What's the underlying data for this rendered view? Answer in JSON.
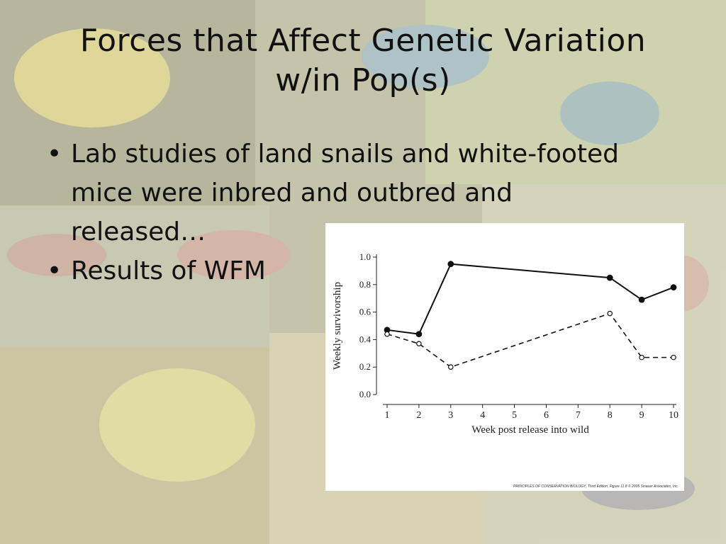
{
  "slide": {
    "title": "Forces that Affect Genetic Variation w/in Pop(s)",
    "bullets": [
      "Lab studies of land snails and white-footed mice were inbred and outbred and released…",
      "Results of WFM"
    ],
    "bullet_glyph": "•",
    "credit": "PRINCIPLES OF CONSERVATION BIOLOGY, Third Edition, Figure 11.8 © 2005 Sinauer Associates, Inc."
  },
  "chart_data": {
    "type": "line",
    "title": "",
    "xlabel": "Week post release into wild",
    "ylabel": "Weekly survivorship",
    "xlim": [
      1,
      10
    ],
    "ylim": [
      0.0,
      1.0
    ],
    "x_ticks": [
      1,
      2,
      3,
      4,
      5,
      6,
      7,
      8,
      9,
      10
    ],
    "y_ticks": [
      "0.0",
      "0.2",
      "0.4",
      "0.6",
      "0.8",
      "1.0"
    ],
    "grid": false,
    "legend": "none",
    "series": [
      {
        "style": "solid-filled-circles",
        "color": "#111111",
        "x": [
          1,
          2,
          3,
          8,
          9,
          10
        ],
        "y": [
          0.47,
          0.44,
          0.95,
          0.85,
          0.69,
          0.78
        ]
      },
      {
        "style": "dashed-open-circles",
        "color": "#111111",
        "x": [
          1,
          2,
          3,
          8,
          9,
          10
        ],
        "y": [
          0.44,
          0.37,
          0.2,
          0.59,
          0.27,
          0.27
        ]
      }
    ]
  }
}
